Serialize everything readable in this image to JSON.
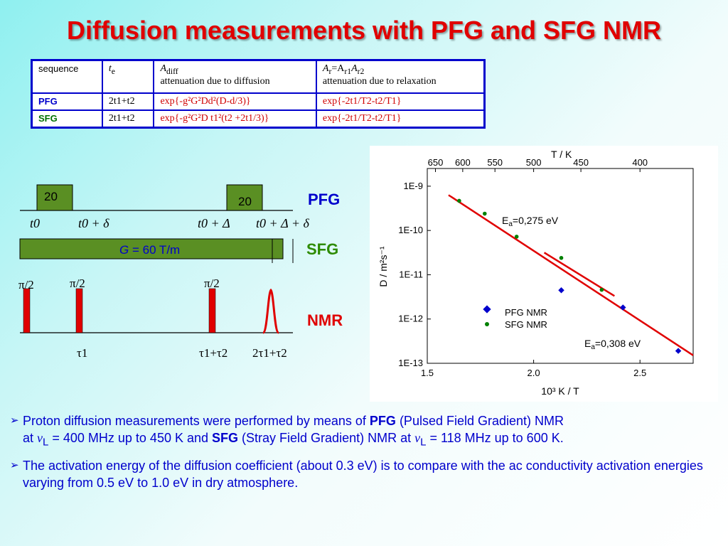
{
  "title": "Diffusion measurements with PFG and SFG NMR",
  "table": {
    "header": {
      "sequence": "sequence",
      "te": "t",
      "te_sub": "e",
      "adiff": "A",
      "adiff_sub": "diff",
      "adiff_desc": "attenuation due to diffusion",
      "ar": "A",
      "ar_sub": "r",
      "ar_eq": "=A",
      "ar_sub1": "r1",
      "ar_a2": "A",
      "ar_sub2": "r2",
      "ar_desc": "attenuation due to relaxation"
    },
    "rows": [
      {
        "name": "PFG",
        "te": "2t1+t2",
        "adiff": "exp{-g²G²Dd²(D-d/3)}",
        "ar": "exp{-2t1/T2-t2/T1}"
      },
      {
        "name": "SFG",
        "te": "2t1+t2",
        "adiff": "exp{-g²G²D t1²(t2 +2t1/3)}",
        "ar": "exp{-2t1/T2-t2/T1}"
      }
    ]
  },
  "pulse_diagram": {
    "pfg_label": "PFG",
    "sfg_label": "SFG",
    "nmr_label": "NMR",
    "gradient1": "20",
    "gradient2": "20",
    "time_labels": [
      "t0",
      "t0 + δ",
      "t0 + Δ",
      "t0 + Δ + δ"
    ],
    "sfg_field_prefix": "G",
    "sfg_field_value": " = 60 T/m",
    "pulse_labels": [
      "π/2",
      "π/2",
      "π/2"
    ],
    "tau_labels": [
      "τ1",
      "τ1+τ2",
      "2τ1+τ2"
    ]
  },
  "chart_data": {
    "type": "scatter",
    "top_axis_label": "T / K",
    "top_ticks": [
      "650",
      "600",
      "550",
      "500",
      "450",
      "400"
    ],
    "xlabel": "10³ K / T",
    "ylabel": "D / m²s⁻¹",
    "x_ticks": [
      "1.5",
      "2.0",
      "2.5"
    ],
    "y_ticks": [
      "1E-9",
      "1E-10",
      "1E-11",
      "1E-12",
      "1E-13"
    ],
    "xlim": [
      1.5,
      2.75
    ],
    "ylim_log10": [
      -13,
      -8.6
    ],
    "series": [
      {
        "name": "PFG NMR",
        "color": "#0000cc",
        "marker": "diamond",
        "points": [
          [
            2.13,
            -11.35
          ],
          [
            2.42,
            -11.74
          ],
          [
            2.68,
            -12.72
          ]
        ]
      },
      {
        "name": "SFG NMR",
        "color": "#008000",
        "marker": "circle",
        "points": [
          [
            1.65,
            -9.33
          ],
          [
            1.77,
            -9.62
          ],
          [
            1.92,
            -10.14
          ],
          [
            2.13,
            -10.62
          ],
          [
            2.32,
            -11.34
          ]
        ]
      }
    ],
    "fits": [
      {
        "x": [
          1.6,
          2.75
        ],
        "y": [
          -9.2,
          -12.82
        ],
        "color": "#e00000"
      },
      {
        "x": [
          2.05,
          2.38
        ],
        "y": [
          -10.5,
          -11.48
        ],
        "color": "#e00000"
      }
    ],
    "annotations": [
      {
        "text_main": "E",
        "text_sub": "a",
        "text_rest": "=0,275 eV"
      },
      {
        "text_main": "E",
        "text_sub": "a",
        "text_rest": "=0,308 eV"
      }
    ]
  },
  "bullets": [
    {
      "p1": "Proton diffusion measurements were performed by means of ",
      "b1": "PFG",
      "p2": " (Pulsed Field Gradient) NMR",
      "p3": "at ",
      "nu1": "ν",
      "sub1": "L",
      "p4": " = 400 MHz up to 450 K and ",
      "b2": "SFG",
      "p5": " (Stray Field Gradient) NMR at ",
      "nu2": "ν",
      "sub2": "L",
      "p6": " = 118 MHz up to 600 K."
    },
    {
      "text": "The activation energy of the diffusion coefficient (about 0.3 eV) is to compare with the ac conductivity activation energies varying from 0.5 eV to 1.0 eV in dry atmosphere."
    }
  ]
}
